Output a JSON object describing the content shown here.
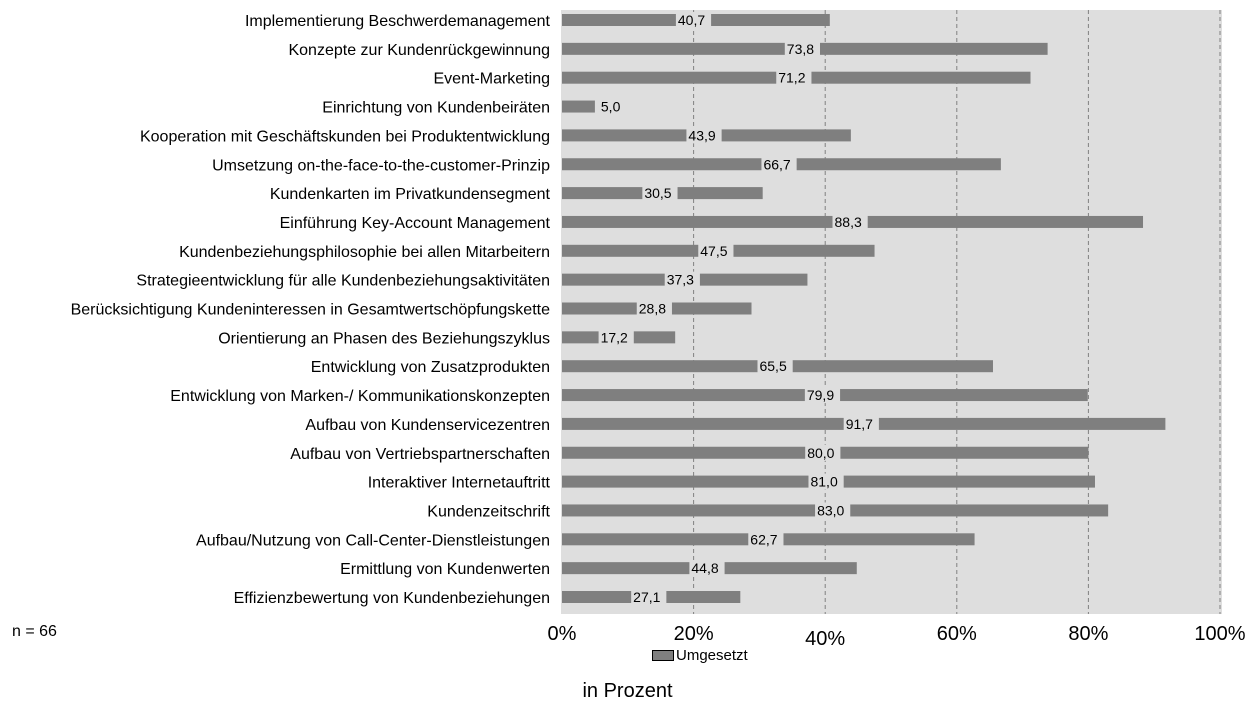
{
  "chart_data": {
    "type": "bar",
    "orientation": "horizontal",
    "categories": [
      "Implementierung Beschwerdemanagement",
      "Konzepte zur Kundenrückgewinnung",
      "Event-Marketing",
      "Einrichtung von Kundenbeiräten",
      "Kooperation mit Geschäftskunden bei Produktentwicklung",
      "Umsetzung on-the-face-to-the-customer-Prinzip",
      "Kundenkarten im Privatkundensegment",
      "Einführung Key-Account Management",
      "Kundenbeziehungsphilosophie bei allen Mitarbeitern",
      "Strategieentwicklung für alle Kundenbeziehungsaktivitäten",
      "Berücksichtigung Kundeninteressen in Gesamtwertschöpfungskette",
      "Orientierung an Phasen des Beziehungszyklus",
      "Entwicklung von Zusatzprodukten",
      "Entwicklung von Marken-/ Kommunikationskonzepten",
      "Aufbau von Kundenservicezentren",
      "Aufbau von Vertriebspartnerschaften",
      "Interaktiver Internetauftritt",
      "Kundenzeitschrift",
      "Aufbau/Nutzung von Call-Center-Dienstleistungen",
      "Ermittlung von Kundenwerten",
      "Effizienzbewertung von Kundenbeziehungen"
    ],
    "series": [
      {
        "name": "Umgesetzt",
        "values": [
          40.7,
          73.8,
          71.2,
          5.0,
          43.9,
          66.7,
          30.5,
          88.3,
          47.5,
          37.3,
          28.8,
          17.2,
          65.5,
          79.9,
          91.7,
          80.0,
          81.0,
          83.0,
          62.7,
          44.8,
          27.1
        ],
        "value_labels": [
          "40,7",
          "73,8",
          "71,2",
          "5,0",
          "43,9",
          "66,7",
          "30,5",
          "88,3",
          "47,5",
          "37,3",
          "28,8",
          "17,2",
          "65,5",
          "79,9",
          "91,7",
          "80,0",
          "81,0",
          "83,0",
          "62,7",
          "44,8",
          "27,1"
        ]
      }
    ],
    "xlim": [
      0,
      100
    ],
    "xticks": [
      "0%",
      "20%",
      "40%",
      "60%",
      "80%",
      "100%"
    ],
    "xlabel": "in Prozent",
    "grid": true,
    "legend_position": "bottom",
    "colors": {
      "bar": "#7f7f7f",
      "plot_background": "#dedede",
      "gridline": "#808080"
    }
  },
  "note": "n = 66"
}
